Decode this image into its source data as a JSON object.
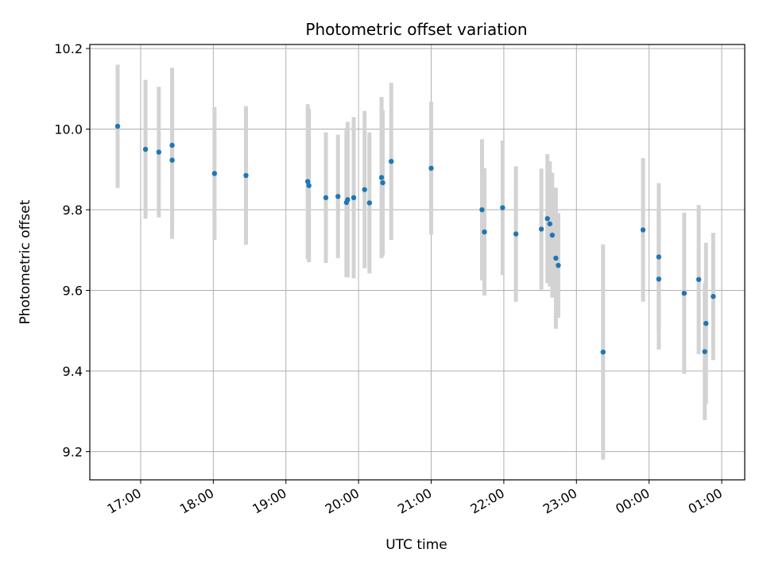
{
  "chart_data": {
    "type": "scatter",
    "title": "Photometric offset variation",
    "xlabel": "UTC time",
    "ylabel": "Photometric offset",
    "x_axis_kind": "time",
    "x_ticks": [
      "17:00",
      "18:00",
      "19:00",
      "20:00",
      "21:00",
      "22:00",
      "23:00",
      "00:00",
      "01:00"
    ],
    "x_tick_values": [
      "17:00",
      "18:00",
      "19:00",
      "20:00",
      "21:00",
      "22:00",
      "23:00",
      "24:00",
      "25:00"
    ],
    "xlim": [
      "16:18",
      "25:19"
    ],
    "ylim": [
      9.13,
      10.21
    ],
    "y_ticks": [
      9.2,
      9.4,
      9.6,
      9.8,
      10.0,
      10.2
    ],
    "grid": true,
    "colors": {
      "point": "#1f77b4",
      "errorbar": "#d3d3d3",
      "grid": "#b0b0b0"
    },
    "series": [
      {
        "x": [
          "16:41",
          "17:04",
          "17:15",
          "17:26",
          "17:26",
          "18:01",
          "18:27",
          "19:18",
          "19:19",
          "19:33",
          "19:43",
          "19:50",
          "19:51",
          "19:56",
          "20:05",
          "20:09",
          "20:19",
          "20:20",
          "20:27",
          "21:00",
          "21:42",
          "21:44",
          "21:59",
          "22:10",
          "22:31",
          "22:36",
          "22:38",
          "22:40",
          "22:43",
          "22:45",
          "23:22",
          "23:55",
          "24:08",
          "24:08",
          "24:29",
          "24:41",
          "24:46",
          "24:47",
          "24:53"
        ],
        "y": [
          10.007,
          9.95,
          9.943,
          9.96,
          9.923,
          9.89,
          9.885,
          9.87,
          9.86,
          9.83,
          9.833,
          9.818,
          9.825,
          9.83,
          9.85,
          9.817,
          9.88,
          9.867,
          9.92,
          9.903,
          9.8,
          9.745,
          9.805,
          9.74,
          9.752,
          9.778,
          9.765,
          9.737,
          9.68,
          9.662,
          9.447,
          9.75,
          9.683,
          9.628,
          9.593,
          9.627,
          9.448,
          9.518,
          9.585
        ],
        "yerr": [
          0.153,
          0.172,
          0.162,
          0.192,
          0.195,
          0.165,
          0.172,
          0.192,
          0.19,
          0.162,
          0.153,
          0.185,
          0.193,
          0.2,
          0.195,
          0.175,
          0.2,
          0.18,
          0.195,
          0.165,
          0.175,
          0.158,
          0.167,
          0.168,
          0.15,
          0.16,
          0.155,
          0.155,
          0.175,
          0.13,
          0.267,
          0.178,
          0.183,
          0.175,
          0.2,
          0.185,
          0.17,
          0.2,
          0.158
        ]
      }
    ]
  }
}
